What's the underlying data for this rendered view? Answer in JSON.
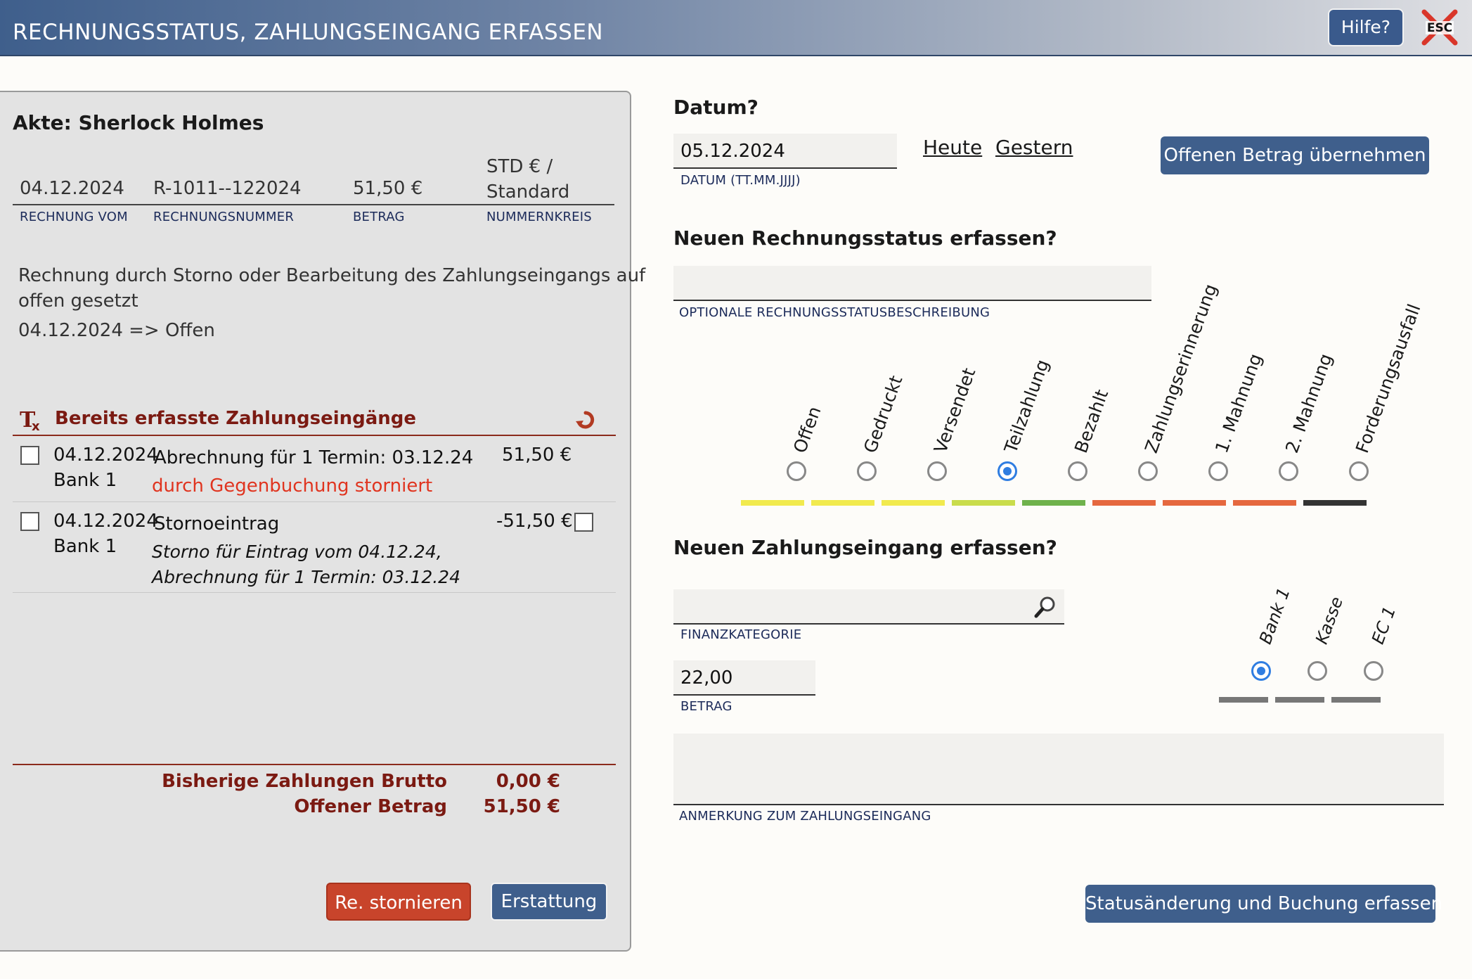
{
  "header": {
    "title": "RECHNUNGSSTATUS, ZAHLUNGSEINGANG ERFASSEN",
    "help_label": "Hilfe?",
    "esc_label": "ESC"
  },
  "left": {
    "akte_label": "Akte: Sherlock Holmes",
    "invoice": {
      "date": "04.12.2024",
      "date_label": "RECHNUNG VOM",
      "number": "R-1011--122024",
      "number_label": "RECHNUNGSNUMMER",
      "amount": "51,50 €",
      "amount_label": "BETRAG",
      "circle_line1": "STD € /",
      "circle_line2": "Standard",
      "circle_label": "NUMMERNKREIS"
    },
    "history_line1": "Rechnung durch Storno oder Bearbeitung des Zahlungseingangs auf",
    "history_line2": "offen gesetzt",
    "history_line3": "04.12.2024 => Offen",
    "payments_title": "Bereits erfasste Zahlungseingänge",
    "payments": [
      {
        "date": "04.12.2024",
        "account": "Bank 1",
        "desc": "Abrechnung für 1 Termin: 03.12.24",
        "note": "durch Gegenbuchung storniert",
        "amount": "51,50 €"
      },
      {
        "date": "04.12.2024",
        "account": "Bank 1",
        "desc": "Stornoeintrag",
        "note_line1": "Storno für Eintrag vom 04.12.24,",
        "note_line2": "Abrechnung für 1 Termin: 03.12.24",
        "amount": "-51,50 €"
      }
    ],
    "totals": {
      "paid_label": "Bisherige Zahlungen Brutto",
      "paid_value": "0,00 €",
      "open_label": "Offener Betrag",
      "open_value": "51,50 €"
    },
    "cancel_button": "Re. stornieren",
    "refund_button": "Erstattung"
  },
  "right": {
    "date_heading": "Datum?",
    "date_value": "05.12.2024",
    "date_label": "DATUM (TT.MM.JJJJ)",
    "today_link": "Heute",
    "yesterday_link": "Gestern",
    "take_open_button": "Offenen Betrag übernehmen",
    "status_heading": "Neuen Rechnungsstatus erfassen?",
    "status_desc_value": "",
    "status_desc_label": "OPTIONALE RECHNUNGSSTATUSBESCHREIBUNG",
    "statuses": [
      {
        "label": "Offen",
        "color": "#f1ea4e",
        "selected": false
      },
      {
        "label": "Gedruckt",
        "color": "#f1ea4e",
        "selected": false
      },
      {
        "label": "Versendet",
        "color": "#f1ea4e",
        "selected": false
      },
      {
        "label": "Teilzahlung",
        "color": "#c9dc4c",
        "selected": true
      },
      {
        "label": "Bezahlt",
        "color": "#6fb24c",
        "selected": false
      },
      {
        "label": "Zahlungserinnerung",
        "color": "#e5683f",
        "selected": false
      },
      {
        "label": "1. Mahnung",
        "color": "#e5683f",
        "selected": false
      },
      {
        "label": "2. Mahnung",
        "color": "#e5683f",
        "selected": false
      },
      {
        "label": "Forderungsausfall",
        "color": "#333333",
        "selected": false
      }
    ],
    "payment_heading": "Neuen Zahlungseingang erfassen?",
    "category_value": "",
    "category_label": "FINANZKATEGORIE",
    "amount_value": "22,00",
    "amount_label": "BETRAG",
    "accounts": [
      {
        "label": "Bank 1",
        "selected": true
      },
      {
        "label": "Kasse",
        "selected": false
      },
      {
        "label": "EC 1",
        "selected": false
      }
    ],
    "note_value": "",
    "note_label": "ANMERKUNG ZUM ZAHLUNGSEINGANG",
    "submit_button": "Statusänderung und Buchung erfassen"
  },
  "colors": {
    "primary_button": "#3f5f8c",
    "danger_button": "#c8442b",
    "dark_red": "#7b1a12",
    "radio_selected": "#2f7de1"
  }
}
